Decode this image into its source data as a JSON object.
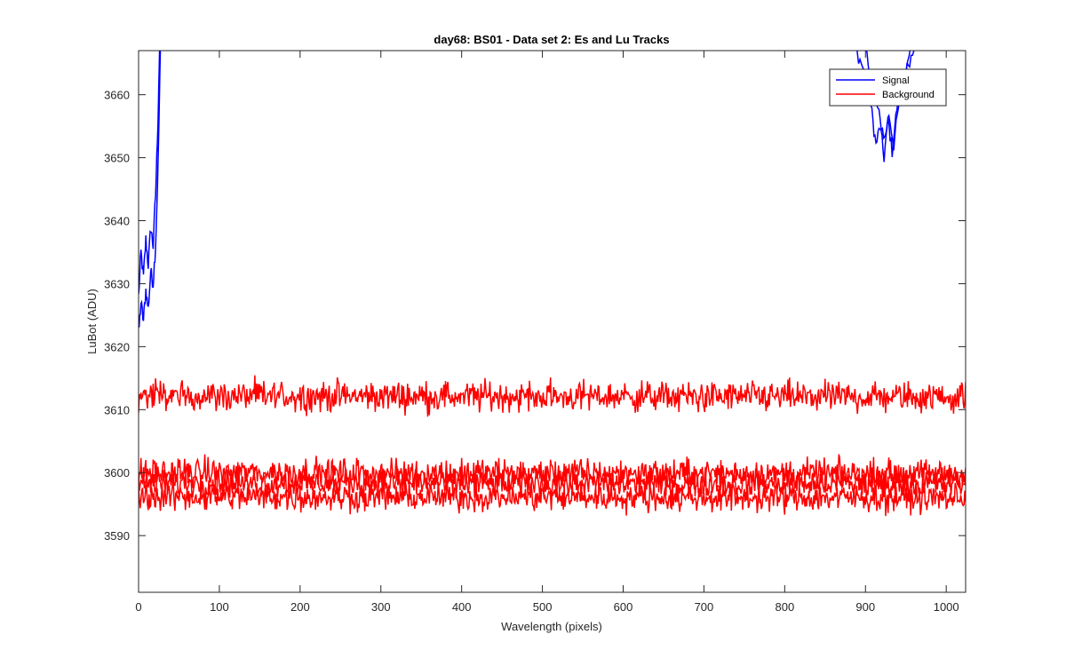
{
  "chart_data": {
    "type": "line",
    "title": "day68: BS01 - Data set 2: Es and Lu Tracks",
    "xlabel": "Wavelength (pixels)",
    "ylabel": "LuBot (ADU)",
    "xlim": [
      0,
      1024
    ],
    "ylim": [
      3581,
      3667
    ],
    "xticks": [
      0,
      100,
      200,
      300,
      400,
      500,
      600,
      700,
      800,
      900,
      1000
    ],
    "yticks": [
      3590,
      3600,
      3610,
      3620,
      3630,
      3640,
      3650,
      3660
    ],
    "grid": false,
    "legend": {
      "placement": "top-right",
      "entries": [
        "Signal",
        "Background"
      ]
    },
    "series": [
      {
        "name": "Signal",
        "color": "#0000ff",
        "tracks": [
          {
            "x": [
              0,
              3,
              6,
              9,
              12,
              15,
              18,
              21,
              24,
              26
            ],
            "y": [
              3628,
              3635,
              3631,
              3637,
              3633,
              3639,
              3636,
              3644,
              3656,
              3667
            ]
          },
          {
            "x": [
              0,
              3,
              6,
              9,
              12,
              15,
              18,
              21,
              24,
              27
            ],
            "y": [
              3622,
              3627,
              3624,
              3629,
              3626,
              3632,
              3630,
              3636,
              3648,
              3667
            ]
          },
          {
            "x": [
              888,
              895,
              902,
              908,
              913,
              918,
              923,
              928,
              933,
              939,
              945,
              951,
              957
            ],
            "y": [
              3667,
              3665,
              3662,
              3657,
              3652,
              3655,
              3650,
              3656,
              3651,
              3658,
              3661,
              3664,
              3667
            ]
          },
          {
            "x": [
              900,
              907,
              913,
              918,
              924,
              929,
              935,
              941,
              947,
              953,
              960
            ],
            "y": [
              3667,
              3663,
              3659,
              3656,
              3653,
              3657,
              3652,
              3658,
              3662,
              3665,
              3667
            ]
          }
        ]
      },
      {
        "name": "Background",
        "color": "#ff0000",
        "tracks": [
          {
            "x": [
              0,
              1024
            ],
            "y": [
              3612.2,
              3612.0
            ],
            "amplitude": 1.7
          },
          {
            "x": [
              0,
              1024
            ],
            "y": [
              3600.0,
              3599.8
            ],
            "amplitude": 1.6
          },
          {
            "x": [
              0,
              1024
            ],
            "y": [
              3598.4,
              3598.2
            ],
            "amplitude": 1.6
          },
          {
            "x": [
              0,
              1024
            ],
            "y": [
              3596.2,
              3596.0
            ],
            "amplitude": 1.6
          }
        ]
      }
    ]
  }
}
